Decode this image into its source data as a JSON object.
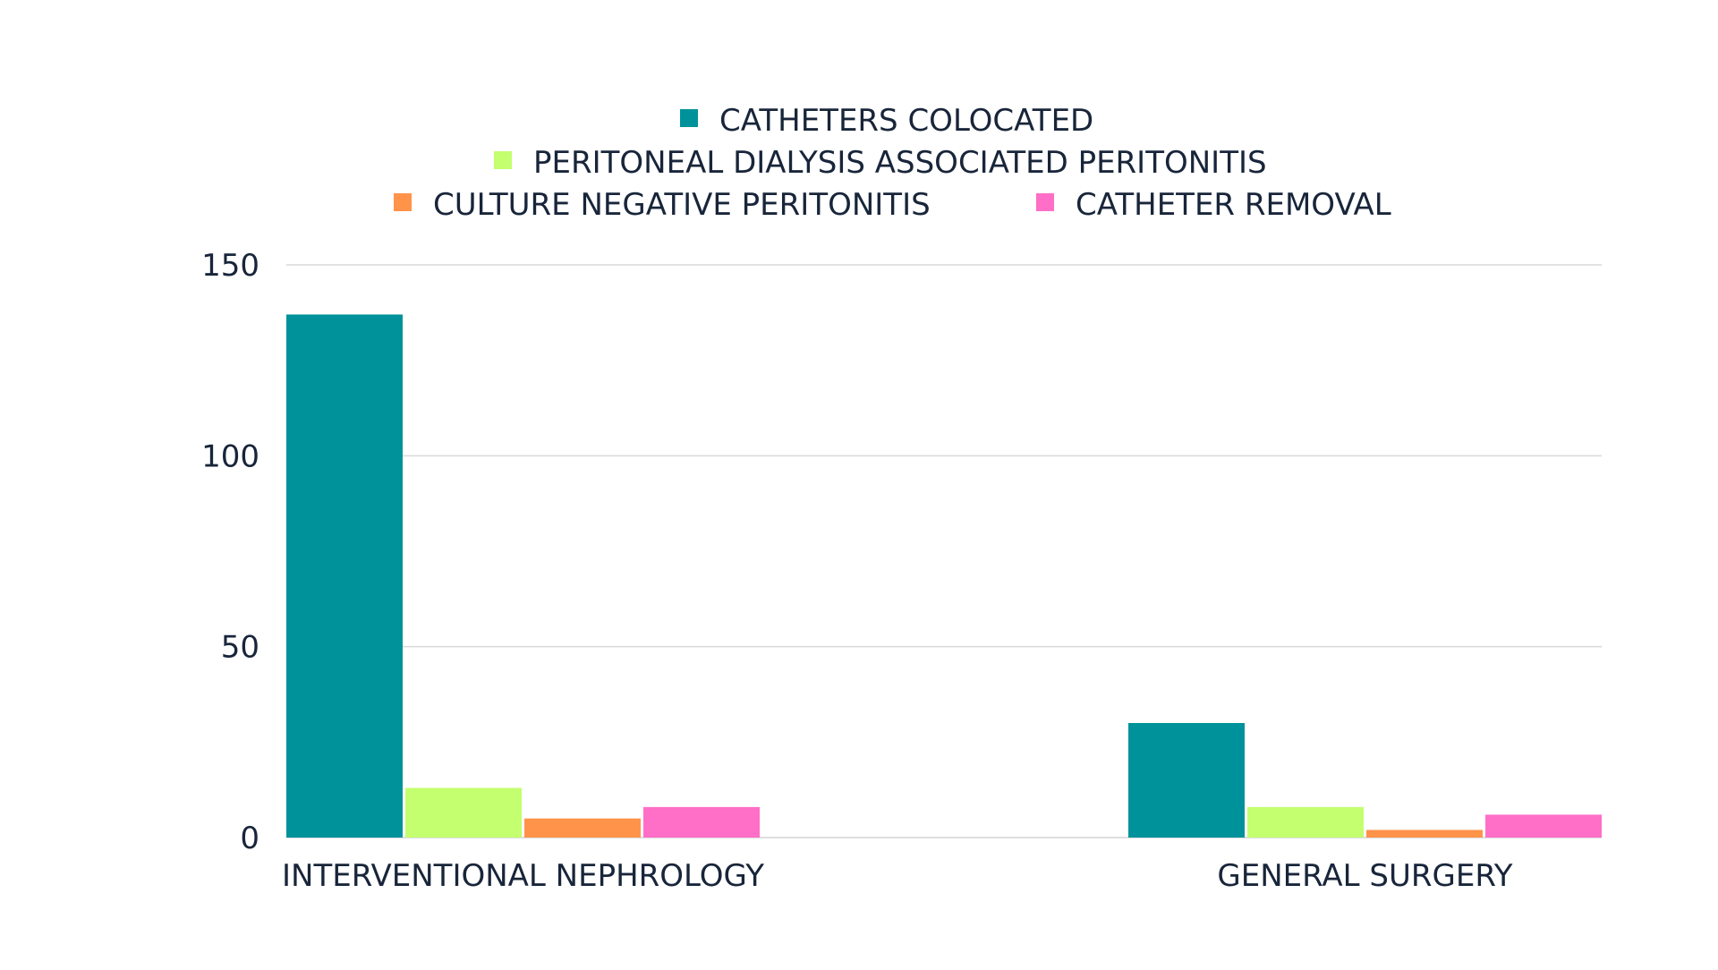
{
  "chart_data": {
    "type": "bar",
    "categories": [
      "INTERVENTIONAL NEPHROLOGY",
      "GENERAL SURGERY"
    ],
    "series": [
      {
        "name": "CATHETERS COLOCATED",
        "color": "#00929a",
        "values": [
          137,
          30
        ]
      },
      {
        "name": "PERITONEAL DIALYSIS ASSOCIATED PERITONITIS",
        "color": "#c3ff6e",
        "values": [
          13,
          8
        ]
      },
      {
        "name": "CULTURE NEGATIVE PERITONITIS",
        "color": "#ff934a",
        "values": [
          5,
          2
        ]
      },
      {
        "name": "CATHETER REMOVAL",
        "color": "#ff6ec7",
        "values": [
          8,
          6
        ]
      }
    ],
    "yticks": [
      0,
      50,
      100,
      150
    ],
    "ylim": [
      0,
      150
    ],
    "grid": true,
    "legend_position": "top-center"
  }
}
